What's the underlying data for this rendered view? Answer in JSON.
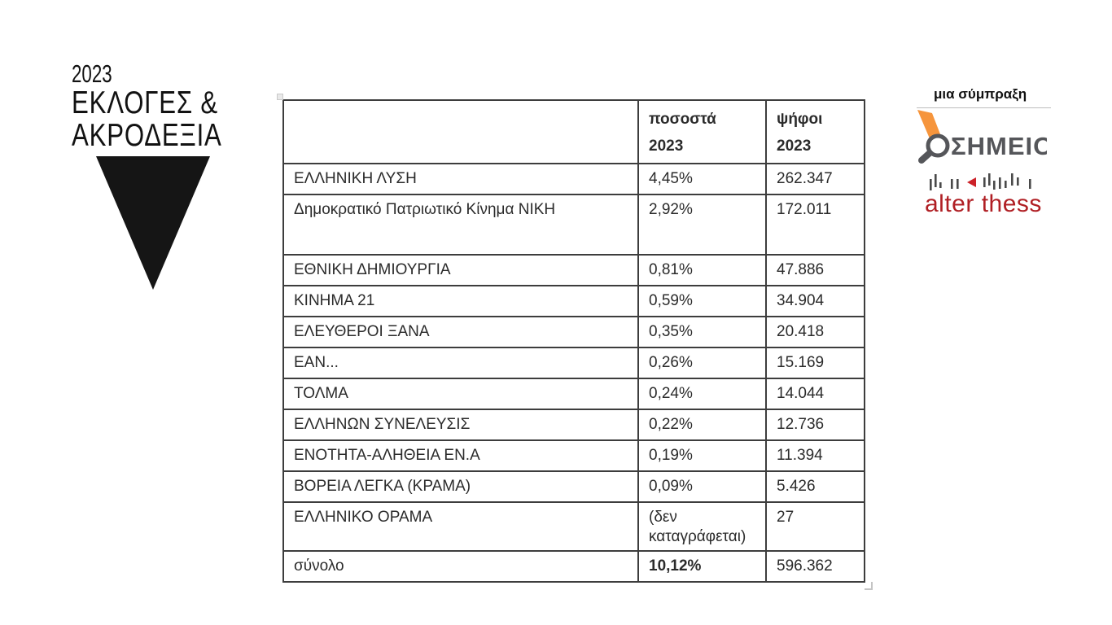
{
  "title": {
    "year": "2023",
    "line1": "ΕΚΛΟΓΕΣ &",
    "line2": "ΑΚΡΟΔΕΞΙΑ"
  },
  "table": {
    "headers": {
      "party": "",
      "pct": [
        "ποσοστά",
        "2023"
      ],
      "votes": [
        "ψήφοι",
        "2023"
      ]
    },
    "rows": [
      {
        "party": "ΕΛΛΗΝΙΚΗ ΛΥΣΗ",
        "percent": "4,45%",
        "votes": "262.347"
      },
      {
        "party": "Δημοκρατικό Πατριωτικό Κίνημα ΝΙΚΗ",
        "percent": "2,92%",
        "votes": "172.011",
        "tall": true
      },
      {
        "party": "ΕΘΝΙΚΗ ΔΗΜΙΟΥΡΓΙΑ",
        "percent": "0,81%",
        "votes": "47.886"
      },
      {
        "party": "ΚΙΝΗΜΑ 21",
        "percent": "0,59%",
        "votes": "34.904"
      },
      {
        "party": "ΕΛΕΥΘΕΡΟΙ ΞΑΝΑ",
        "percent": "0,35%",
        "votes": "20.418"
      },
      {
        "party": "ΕΑΝ...",
        "percent": "0,26%",
        "votes": "15.169"
      },
      {
        "party": "ΤΟΛΜΑ",
        "percent": "0,24%",
        "votes": "14.044"
      },
      {
        "party": "ΕΛΛΗΝΩΝ ΣΥΝΕΛΕΥΣΙΣ",
        "percent": "0,22%",
        "votes": "12.736"
      },
      {
        "party": "ΕΝΟΤΗΤΑ-ΑΛΗΘΕΙΑ ΕΝ.Α",
        "percent": "0,19%",
        "votes": "11.394"
      },
      {
        "party": "ΒΟΡΕΙΑ ΛΕΓΚΑ (ΚΡΑΜΑ)",
        "percent": "0,09%",
        "votes": "5.426"
      },
      {
        "party": "ΕΛΛΗΝΙΚΟ ΟΡΑΜΑ",
        "percent": "(δεν καταγράφεται)",
        "votes": "27"
      },
      {
        "party": "σύνολο",
        "percent": "10,12%",
        "votes": "596.362",
        "is_total": true
      }
    ]
  },
  "partners": {
    "caption": "μια σύμπραξη",
    "simeio_label": "ΣΗΜΕΙΟ",
    "alterthess_label": "alter thess"
  },
  "colors": {
    "accent_orange": "#f6953c",
    "logo_gray": "#55565a",
    "alterthess_red": "#b01f24",
    "table_border": "#3d3d3d",
    "text": "#262626"
  }
}
